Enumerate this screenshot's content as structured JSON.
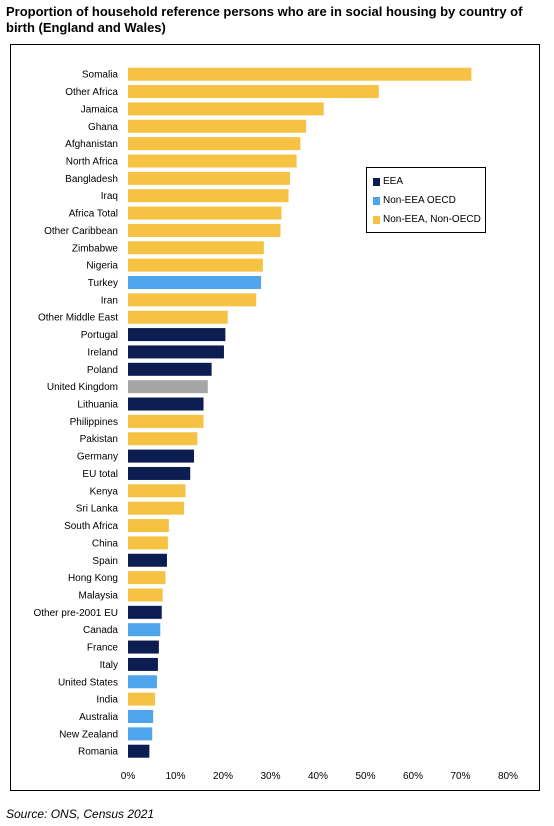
{
  "title": "Proportion of household reference persons who are in social housing by country of birth (England and Wales)",
  "source": "Source: ONS, Census 2021",
  "colors": {
    "EEA": "#0b1d51",
    "Non-EEA OECD": "#4ea5ec",
    "Non-EEA, Non-OECD": "#f5c244",
    "UK": "#a6a6a6"
  },
  "legend": [
    {
      "label": "EEA",
      "group": "EEA"
    },
    {
      "label": "Non-EEA OECD",
      "group": "Non-EEA OECD"
    },
    {
      "label": "Non-EEA, Non-OECD",
      "group": "Non-EEA, Non-OECD"
    }
  ],
  "chart_data": {
    "type": "bar",
    "orientation": "horizontal",
    "title": "Proportion of household reference persons who are in social housing by country of birth (England and Wales)",
    "xlim": [
      0,
      80
    ],
    "xticks": [
      "0%",
      "10%",
      "20%",
      "30%",
      "40%",
      "50%",
      "60%",
      "70%",
      "80%"
    ],
    "legend_position": "top-right",
    "grid": false,
    "categories": [
      "Somalia",
      "Other Africa",
      "Jamaica",
      "Ghana",
      "Afghanistan",
      "North Africa",
      "Bangladesh",
      "Iraq",
      "Africa Total",
      "Other Caribbean",
      "Zimbabwe",
      "Nigeria",
      "Turkey",
      "Iran",
      "Other Middle East",
      "Portugal",
      "Ireland",
      "Poland",
      "United Kingdom",
      "Lithuania",
      "Philippines",
      "Pakistan",
      "Germany",
      "EU total",
      "Kenya",
      "Sri Lanka",
      "South Africa",
      "China",
      "Spain",
      "Hong Kong",
      "Malaysia",
      "Other pre-2001 EU",
      "Canada",
      "France",
      "Italy",
      "United States",
      "India",
      "Australia",
      "New Zealand",
      "Romania"
    ],
    "values": [
      72.3,
      52.8,
      41.2,
      37.5,
      36.3,
      35.5,
      34.1,
      33.8,
      32.3,
      32.1,
      28.6,
      28.4,
      28.0,
      27.0,
      21.0,
      20.5,
      20.2,
      17.6,
      16.8,
      15.9,
      15.9,
      14.6,
      13.9,
      13.1,
      12.1,
      11.8,
      8.6,
      8.4,
      8.2,
      7.9,
      7.3,
      7.1,
      6.8,
      6.5,
      6.3,
      6.1,
      5.7,
      5.3,
      5.1,
      4.5
    ],
    "groups": [
      "Non-EEA, Non-OECD",
      "Non-EEA, Non-OECD",
      "Non-EEA, Non-OECD",
      "Non-EEA, Non-OECD",
      "Non-EEA, Non-OECD",
      "Non-EEA, Non-OECD",
      "Non-EEA, Non-OECD",
      "Non-EEA, Non-OECD",
      "Non-EEA, Non-OECD",
      "Non-EEA, Non-OECD",
      "Non-EEA, Non-OECD",
      "Non-EEA, Non-OECD",
      "Non-EEA OECD",
      "Non-EEA, Non-OECD",
      "Non-EEA, Non-OECD",
      "EEA",
      "EEA",
      "EEA",
      "UK",
      "EEA",
      "Non-EEA, Non-OECD",
      "Non-EEA, Non-OECD",
      "EEA",
      "EEA",
      "Non-EEA, Non-OECD",
      "Non-EEA, Non-OECD",
      "Non-EEA, Non-OECD",
      "Non-EEA, Non-OECD",
      "EEA",
      "Non-EEA, Non-OECD",
      "Non-EEA, Non-OECD",
      "EEA",
      "Non-EEA OECD",
      "EEA",
      "EEA",
      "Non-EEA OECD",
      "Non-EEA, Non-OECD",
      "Non-EEA OECD",
      "Non-EEA OECD",
      "EEA"
    ]
  }
}
